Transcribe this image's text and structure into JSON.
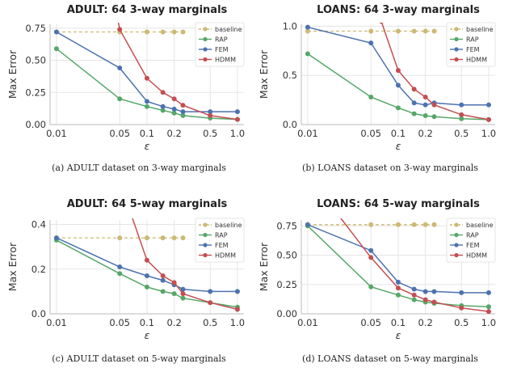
{
  "colors": {
    "baseline": "#ccb974",
    "RAP": "#55a868",
    "FEM": "#4c72b0",
    "HDMM": "#c44e52",
    "grid": "#e5e5e5",
    "axis": "#bbbbbb"
  },
  "chart_data": [
    {
      "type": "line",
      "title": "ADULT: 64 3-way marginals",
      "caption": "(a) ADULT dataset on 3-way marginals",
      "xlabel": "ε",
      "ylabel": "Max Error",
      "x_ticks": [
        0.01,
        0.05,
        0.1,
        0.2,
        0.5,
        1.0
      ],
      "x_tick_labels": [
        "0.01",
        "0.05",
        "0.1",
        "0.2",
        "0.5",
        "1.0"
      ],
      "x_scale": "log",
      "ylim": [
        0,
        0.78
      ],
      "y_ticks": [
        "0.00",
        "0.25",
        "0.50",
        "0.75"
      ],
      "legend": "top-right",
      "series": [
        {
          "name": "baseline",
          "x": [
            0.01,
            0.05,
            0.1,
            0.15,
            0.2,
            0.25
          ],
          "y": [
            0.72,
            0.72,
            0.72,
            0.72,
            0.72,
            0.72
          ]
        },
        {
          "name": "RAP",
          "x": [
            0.01,
            0.05,
            0.1,
            0.15,
            0.2,
            0.25,
            0.5,
            1.0
          ],
          "y": [
            0.59,
            0.2,
            0.14,
            0.11,
            0.09,
            0.07,
            0.05,
            0.04
          ]
        },
        {
          "name": "FEM",
          "x": [
            0.01,
            0.05,
            0.1,
            0.15,
            0.2,
            0.25,
            0.5,
            1.0
          ],
          "y": [
            0.72,
            0.44,
            0.18,
            0.14,
            0.12,
            0.1,
            0.1,
            0.1
          ]
        },
        {
          "name": "HDMM",
          "x": [
            0.045,
            0.05,
            0.1,
            0.15,
            0.2,
            0.25,
            0.5,
            1.0
          ],
          "y": [
            0.9,
            0.74,
            0.36,
            0.25,
            0.2,
            0.15,
            0.07,
            0.04
          ]
        }
      ]
    },
    {
      "type": "line",
      "title": "LOANS: 64 3-way marginals",
      "caption": "(b) LOANS dataset on 3-way marginals",
      "xlabel": "ε",
      "ylabel": "Max Error",
      "x_ticks": [
        0.01,
        0.05,
        0.1,
        0.2,
        0.5,
        1.0
      ],
      "x_tick_labels": [
        "0.01",
        "0.05",
        "0.1",
        "0.2",
        "0.5",
        "1.0"
      ],
      "x_scale": "log",
      "ylim": [
        0,
        1.02
      ],
      "y_ticks": [
        "0.0",
        "0.5",
        "1.0"
      ],
      "legend": "top-right",
      "series": [
        {
          "name": "baseline",
          "x": [
            0.01,
            0.05,
            0.1,
            0.15,
            0.2,
            0.25
          ],
          "y": [
            0.95,
            0.95,
            0.95,
            0.95,
            0.95,
            0.95
          ]
        },
        {
          "name": "RAP",
          "x": [
            0.01,
            0.05,
            0.1,
            0.15,
            0.2,
            0.25,
            0.5,
            1.0
          ],
          "y": [
            0.72,
            0.28,
            0.17,
            0.11,
            0.09,
            0.08,
            0.06,
            0.05
          ]
        },
        {
          "name": "FEM",
          "x": [
            0.01,
            0.05,
            0.1,
            0.15,
            0.2,
            0.25,
            0.5,
            1.0
          ],
          "y": [
            0.99,
            0.83,
            0.4,
            0.22,
            0.2,
            0.22,
            0.2,
            0.2
          ]
        },
        {
          "name": "HDMM",
          "x": [
            0.065,
            0.1,
            0.15,
            0.2,
            0.25,
            0.5,
            1.0
          ],
          "y": [
            1.05,
            0.55,
            0.36,
            0.28,
            0.2,
            0.1,
            0.05
          ]
        }
      ]
    },
    {
      "type": "line",
      "title": "ADULT: 64 5-way marginals",
      "caption": "(c) ADULT dataset on 5-way marginals",
      "xlabel": "ε",
      "ylabel": "Max Error",
      "x_ticks": [
        0.01,
        0.05,
        0.1,
        0.2,
        0.5,
        1.0
      ],
      "x_tick_labels": [
        "0.01",
        "0.05",
        "0.1",
        "0.2",
        "0.5",
        "1.0"
      ],
      "x_scale": "log",
      "ylim": [
        0,
        0.42
      ],
      "y_ticks": [
        "0.0",
        "0.2",
        "0.4"
      ],
      "legend": "top-right",
      "series": [
        {
          "name": "baseline",
          "x": [
            0.01,
            0.05,
            0.1,
            0.15,
            0.2,
            0.25
          ],
          "y": [
            0.34,
            0.34,
            0.34,
            0.34,
            0.34,
            0.34
          ]
        },
        {
          "name": "RAP",
          "x": [
            0.01,
            0.05,
            0.1,
            0.15,
            0.2,
            0.25,
            0.5,
            1.0
          ],
          "y": [
            0.33,
            0.18,
            0.12,
            0.1,
            0.09,
            0.07,
            0.05,
            0.03
          ]
        },
        {
          "name": "FEM",
          "x": [
            0.01,
            0.05,
            0.1,
            0.15,
            0.2,
            0.25,
            0.5,
            1.0
          ],
          "y": [
            0.34,
            0.21,
            0.17,
            0.15,
            0.13,
            0.11,
            0.1,
            0.1
          ]
        },
        {
          "name": "HDMM",
          "x": [
            0.06,
            0.1,
            0.15,
            0.2,
            0.25,
            0.5,
            1.0
          ],
          "y": [
            0.5,
            0.24,
            0.17,
            0.14,
            0.09,
            0.05,
            0.02
          ]
        }
      ]
    },
    {
      "type": "line",
      "title": "LOANS: 64 5-way marginals",
      "caption": "(d) LOANS dataset on 5-way marginals",
      "xlabel": "ε",
      "ylabel": "Max Error",
      "x_ticks": [
        0.01,
        0.05,
        0.1,
        0.2,
        0.5,
        1.0
      ],
      "x_tick_labels": [
        "0.01",
        "0.05",
        "0.1",
        "0.2",
        "0.5",
        "1.0"
      ],
      "x_scale": "log",
      "ylim": [
        0,
        0.8
      ],
      "y_ticks": [
        "0.00",
        "0.25",
        "0.50",
        "0.75"
      ],
      "legend": "top-right",
      "series": [
        {
          "name": "baseline",
          "x": [
            0.01,
            0.05,
            0.1,
            0.15,
            0.2,
            0.25
          ],
          "y": [
            0.76,
            0.76,
            0.76,
            0.76,
            0.76,
            0.76
          ]
        },
        {
          "name": "RAP",
          "x": [
            0.01,
            0.05,
            0.1,
            0.15,
            0.2,
            0.25,
            0.5,
            1.0
          ],
          "y": [
            0.75,
            0.23,
            0.16,
            0.12,
            0.1,
            0.09,
            0.07,
            0.06
          ]
        },
        {
          "name": "FEM",
          "x": [
            0.01,
            0.05,
            0.1,
            0.15,
            0.2,
            0.25,
            0.5,
            1.0
          ],
          "y": [
            0.76,
            0.54,
            0.27,
            0.21,
            0.19,
            0.19,
            0.18,
            0.18
          ]
        },
        {
          "name": "HDMM",
          "x": [
            0.0215,
            0.05,
            0.1,
            0.15,
            0.2,
            0.25,
            0.5,
            1.0
          ],
          "y": [
            0.85,
            0.48,
            0.22,
            0.16,
            0.12,
            0.1,
            0.05,
            0.02
          ]
        }
      ]
    }
  ]
}
